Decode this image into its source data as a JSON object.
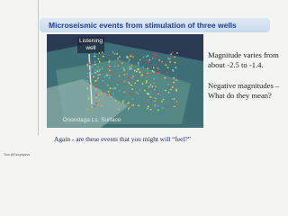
{
  "slide": {
    "title": "Microseismic events from stimulation of three wells",
    "image_labels": [
      "Listening well",
      "Onondaga Ls. Surface"
    ],
    "bullets": [
      "Magnitude varies from about -2.5 to -1.4.",
      "Negative magnitudes – What do they mean?"
    ],
    "caption": "Again - are these events that you might  will “feel?”",
    "footer": "Tom @Geophysics"
  }
}
